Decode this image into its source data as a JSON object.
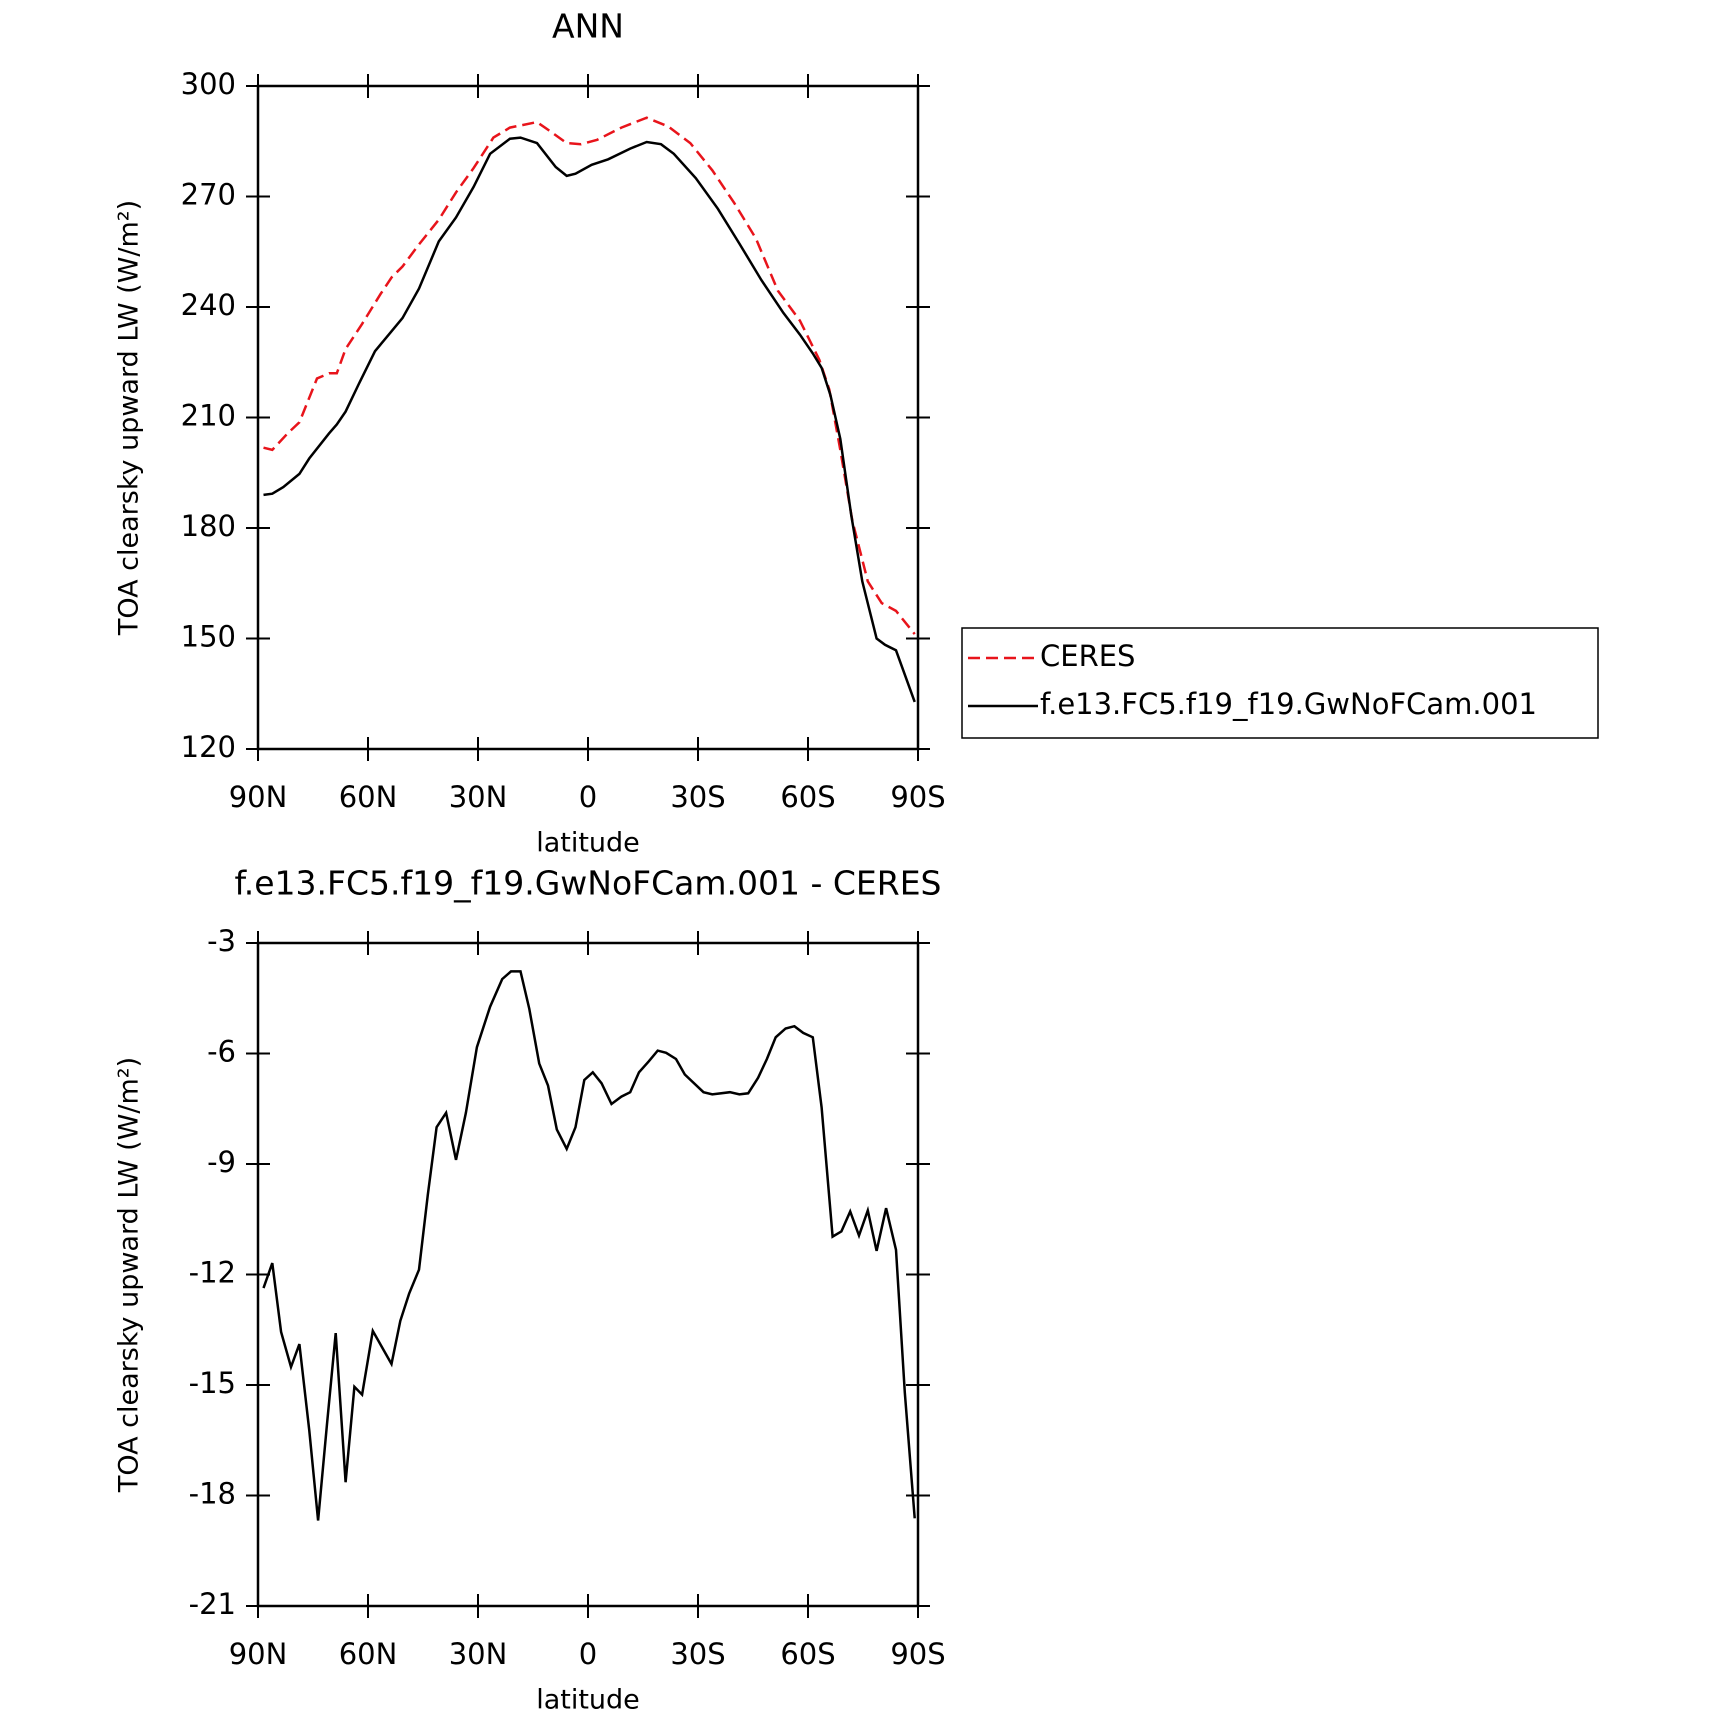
{
  "chart_data": [
    {
      "type": "line",
      "title": "ANN",
      "xlabel": "latitude",
      "ylabel": "TOA clearsky upward LW (W/m²)",
      "xlim": [
        90,
        -90
      ],
      "xticks": [
        {
          "value": 90,
          "label": "90N"
        },
        {
          "value": 60,
          "label": "60N"
        },
        {
          "value": 30,
          "label": "30N"
        },
        0,
        {
          "value": -30,
          "label": "30S"
        },
        {
          "value": -60,
          "label": "60S"
        },
        {
          "value": -90,
          "label": "90S"
        }
      ],
      "ylim": [
        120,
        300
      ],
      "yticks": [
        120,
        150,
        180,
        210,
        240,
        270,
        300
      ],
      "legend": "right",
      "series": [
        {
          "name": "CERES",
          "color": "#e8141b",
          "dashed": true,
          "x": [
            88.5,
            86.1,
            81.9,
            78.7,
            73.9,
            70.6,
            68.5,
            66.1,
            61.6,
            56.6,
            53.6,
            50.6,
            46.1,
            40.7,
            36.0,
            31.2,
            25.8,
            21.3,
            13.9,
            10.0,
            5.8,
            1.9,
            -2.5,
            -9.1,
            -16.0,
            -21.9,
            -27.9,
            -33.9,
            -39.9,
            -45.8,
            -51.8,
            -57.8,
            -63.1,
            -65.8,
            -68.8,
            -72.1,
            -76.3,
            -80.1,
            -84.0,
            -89.1
          ],
          "values": [
            201.8,
            201.2,
            205.7,
            208.7,
            220.6,
            222,
            222,
            228.6,
            235.4,
            243.5,
            248,
            251,
            257,
            263.7,
            271.1,
            277.7,
            286,
            288.7,
            290.2,
            287.5,
            284.5,
            284.2,
            285.4,
            288.7,
            291.4,
            289,
            284.5,
            277.1,
            268.2,
            258.6,
            244.4,
            236.3,
            225.6,
            217.6,
            201.2,
            181.9,
            165.5,
            159.6,
            157.5,
            151.2
          ]
        },
        {
          "name": "f.e13.FC5.f19_f19.GwNoFCam.001",
          "color": "#000000",
          "dashed": false,
          "x": [
            88.5,
            86.1,
            83.1,
            78.7,
            76.0,
            70.6,
            68.5,
            66.1,
            62.5,
            58.1,
            53.6,
            50.6,
            46.1,
            40.7,
            36.0,
            31.2,
            26.7,
            21.3,
            18.4,
            13.9,
            8.8,
            5.8,
            3.4,
            -1.0,
            -5.5,
            -11.5,
            -16.0,
            -19.9,
            -23.4,
            -29.4,
            -35.4,
            -41.3,
            -47.3,
            -53.3,
            -57.8,
            -61.3,
            -63.7,
            -66.1,
            -68.8,
            -71.8,
            -74.8,
            -78.7,
            -81.0,
            -84.0,
            -89.1
          ],
          "values": [
            189,
            189.3,
            191.1,
            194.7,
            198.9,
            205.7,
            208.1,
            211.6,
            219.1,
            228,
            233.4,
            237,
            245,
            257.8,
            264.3,
            272.6,
            281.6,
            285.7,
            286,
            284.5,
            278,
            275.6,
            276.2,
            278.6,
            280.1,
            283,
            284.8,
            284.2,
            281.6,
            275,
            266.7,
            257.2,
            247.3,
            238.4,
            232.5,
            227.4,
            223.5,
            216.1,
            204.2,
            183.4,
            165.5,
            150,
            148.3,
            146.8,
            132.8
          ]
        }
      ]
    },
    {
      "type": "line",
      "title": "f.e13.FC5.f19_f19.GwNoFCam.001 - CERES",
      "xlabel": "latitude",
      "ylabel": "TOA clearsky upward LW (W/m²)",
      "xlim": [
        90,
        -90
      ],
      "xticks": [
        {
          "value": 90,
          "label": "90N"
        },
        {
          "value": 60,
          "label": "60N"
        },
        {
          "value": 30,
          "label": "30N"
        },
        0,
        {
          "value": -30,
          "label": "30S"
        },
        {
          "value": -60,
          "label": "60S"
        },
        {
          "value": -90,
          "label": "90S"
        }
      ],
      "ylim": [
        -21,
        -3
      ],
      "yticks": [
        -21,
        -18,
        -15,
        -12,
        -9,
        -6,
        -3
      ],
      "series": [
        {
          "color": "#000000",
          "dashed": false,
          "x": [
            88.5,
            86.1,
            83.7,
            81.0,
            78.7,
            76.0,
            73.6,
            71.2,
            68.8,
            66.1,
            63.7,
            61.6,
            58.7,
            53.6,
            51.2,
            48.8,
            46.1,
            43.7,
            41.3,
            38.7,
            36.0,
            33.3,
            30.3,
            26.7,
            23.4,
            21.0,
            18.4,
            16.0,
            13.3,
            10.9,
            8.5,
            5.8,
            3.4,
            1.0,
            -1.3,
            -3.7,
            -6.4,
            -9.1,
            -11.5,
            -13.9,
            -16.6,
            -19.0,
            -21.3,
            -24.0,
            -26.4,
            -31.5,
            -33.9,
            -38.7,
            -41.3,
            -43.7,
            -46.4,
            -48.8,
            -51.2,
            -53.9,
            -56.3,
            -58.7,
            -61.3,
            -63.7,
            -66.7,
            -69.1,
            -71.5,
            -73.9,
            -76.3,
            -78.7,
            -81.3,
            -84.0,
            -86.4,
            -89.1
          ],
          "values": [
            -12.37,
            -11.69,
            -13.56,
            -14.51,
            -13.89,
            -16.24,
            -18.68,
            -16.09,
            -13.59,
            -17.64,
            -15.05,
            -15.26,
            -13.53,
            -14.43,
            -13.26,
            -12.52,
            -11.87,
            -9.84,
            -8.0,
            -7.61,
            -8.89,
            -7.61,
            -5.83,
            -4.73,
            -3.98,
            -3.77,
            -3.77,
            -4.79,
            -6.27,
            -6.87,
            -8.06,
            -8.59,
            -8.0,
            -6.72,
            -6.51,
            -6.81,
            -7.37,
            -7.17,
            -7.05,
            -6.51,
            -6.21,
            -5.92,
            -5.98,
            -6.15,
            -6.57,
            -7.05,
            -7.11,
            -7.05,
            -7.11,
            -7.08,
            -6.66,
            -6.15,
            -5.56,
            -5.32,
            -5.26,
            -5.44,
            -5.56,
            -7.46,
            -10.97,
            -10.83,
            -10.29,
            -10.94,
            -10.26,
            -11.36,
            -10.2,
            -11.33,
            -15.2,
            -18.62
          ]
        }
      ]
    }
  ]
}
